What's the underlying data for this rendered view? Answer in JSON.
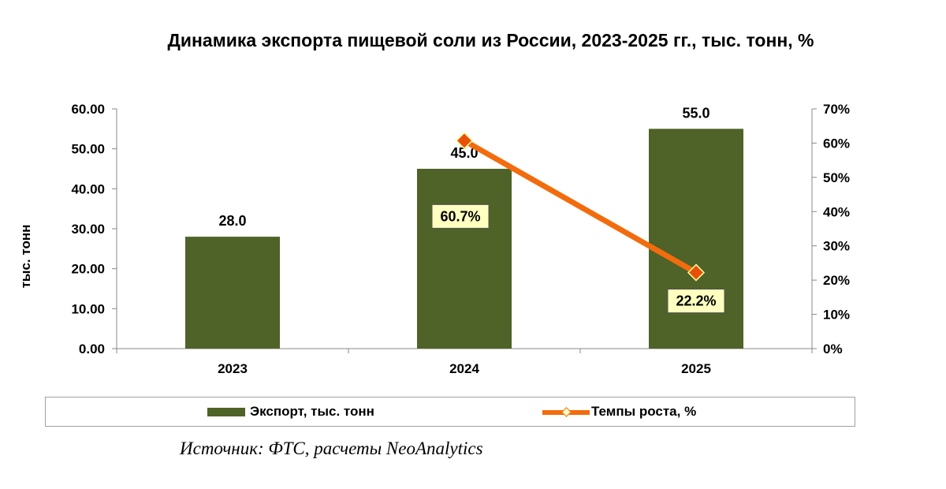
{
  "chart_data": {
    "type": "bar",
    "title": "Динамика экспорта пищевой соли из России, 2023-2025 гг., тыс. тонн, %",
    "ylabel": "тыс. тонн",
    "categories": [
      "2023",
      "2024",
      "2025"
    ],
    "ylim": [
      0,
      60
    ],
    "y_ticks": [
      "0.00",
      "10.00",
      "20.00",
      "30.00",
      "40.00",
      "50.00",
      "60.00"
    ],
    "y2lim": [
      0,
      70
    ],
    "y2_ticks": [
      "0%",
      "10%",
      "20%",
      "30%",
      "40%",
      "50%",
      "60%",
      "70%"
    ],
    "series": [
      {
        "name": "Экспорт, тыс. тонн",
        "type": "bar",
        "axis": "left",
        "color": "#4f6228",
        "values": [
          28.0,
          45.0,
          55.0
        ],
        "labels": [
          "28.0",
          "45.0",
          "55.0"
        ]
      },
      {
        "name": "Темпы роста, %",
        "type": "line",
        "axis": "right",
        "color": "#f26c0d",
        "marker_color": "#e8500a",
        "label_bg": "#ffffc0",
        "values": [
          null,
          60.7,
          22.2
        ],
        "labels": [
          "",
          "60.7%",
          "22.2%"
        ]
      }
    ],
    "grid": false,
    "legend_position": "bottom"
  },
  "source": "Источник: ФТС, расчеты NeoAnalytics"
}
